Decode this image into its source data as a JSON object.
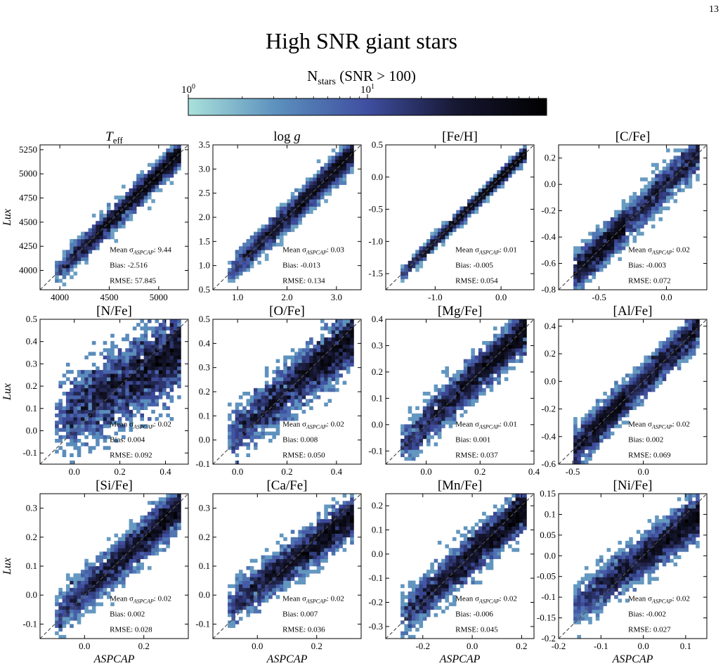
{
  "page_number": "13",
  "figure_title": "High SNR giant stars",
  "colorbar": {
    "label": "N_stars (SNR > 100)",
    "label_main": "N",
    "label_sub": "stars",
    "label_rest": " (SNR > 100)",
    "scale": "log",
    "ticks": [
      "10^0",
      "10^1"
    ],
    "colors": [
      "#a9e1db",
      "#5b8fbd",
      "#3f4ea0",
      "#161731",
      "#000000"
    ]
  },
  "chart_data": [
    {
      "type": "heatmap",
      "title": "T_eff",
      "xlabel": "",
      "ylabel": "Lux",
      "xlim": [
        3800,
        5300
      ],
      "ylim": [
        3800,
        5300
      ],
      "xticks": [
        4000,
        4500,
        5000
      ],
      "yticks": [
        4000,
        4250,
        4500,
        4750,
        5000,
        5250
      ],
      "diagonal": "y = x (dashed)",
      "spread": 0.04,
      "slope": 1.0,
      "tail": 0.0,
      "stats": {
        "mean_label": "Mean σ",
        "mean_sub": "ASPCAP",
        "mean_value": ": 9.44",
        "bias": "Bias: -2.516",
        "rmse": "RMSE: 57.845"
      }
    },
    {
      "type": "heatmap",
      "title": "log g",
      "xlabel": "",
      "ylabel": "",
      "xlim": [
        0.5,
        3.5
      ],
      "ylim": [
        0.5,
        3.5
      ],
      "xticks": [
        1,
        2,
        3
      ],
      "yticks": [
        0.5,
        1.0,
        1.5,
        2.0,
        2.5,
        3.0,
        3.5
      ],
      "diagonal": "y = x (dashed)",
      "spread": 0.045,
      "slope": 1.0,
      "tail": 0.0,
      "stats": {
        "mean_label": "Mean σ",
        "mean_sub": "ASPCAP",
        "mean_value": ": 0.03",
        "bias": "Bias: -0.013",
        "rmse": "RMSE: 0.134"
      }
    },
    {
      "type": "heatmap",
      "title": "[Fe/H]",
      "xlabel": "",
      "ylabel": "",
      "xlim": [
        -1.75,
        0.5
      ],
      "ylim": [
        -1.75,
        0.5
      ],
      "xticks": [
        -1,
        0
      ],
      "yticks": [
        -1.5,
        -1.0,
        -0.5,
        0.0,
        0.5
      ],
      "diagonal": "y = x (dashed)",
      "spread": 0.02,
      "slope": 1.0,
      "tail": 0.0,
      "stats": {
        "mean_label": "Mean σ",
        "mean_sub": "ASPCAP",
        "mean_value": ": 0.01",
        "bias": "Bias: -0.005",
        "rmse": "RMSE: 0.054"
      }
    },
    {
      "type": "heatmap",
      "title": "[C/Fe]",
      "xlabel": "",
      "ylabel": "",
      "xlim": [
        -0.8,
        0.3
      ],
      "ylim": [
        -0.8,
        0.3
      ],
      "xticks": [
        -0.5,
        0.0
      ],
      "yticks": [
        -0.8,
        -0.6,
        -0.4,
        -0.2,
        0.0,
        0.2
      ],
      "diagonal": "y = x (dashed)",
      "spread": 0.06,
      "slope": 1.0,
      "tail": 0.35,
      "stats": {
        "mean_label": "Mean σ",
        "mean_sub": "ASPCAP",
        "mean_value": ": 0.02",
        "bias": "Bias: -0.003",
        "rmse": "RMSE: 0.072"
      }
    },
    {
      "type": "heatmap",
      "title": "[N/Fe]",
      "xlabel": "",
      "ylabel": "Lux",
      "xlim": [
        -0.15,
        0.5
      ],
      "ylim": [
        -0.15,
        0.5
      ],
      "xticks": [
        0.0,
        0.2,
        0.4
      ],
      "yticks": [
        -0.1,
        0.0,
        0.1,
        0.2,
        0.3,
        0.4,
        0.5
      ],
      "diagonal": "y = x (dashed)",
      "spread": 0.13,
      "slope": 0.6,
      "tail": 0.0,
      "stats": {
        "mean_label": "Mean σ",
        "mean_sub": "ASPCAP",
        "mean_value": ": 0.02",
        "bias": "Bias: 0.004",
        "rmse": "RMSE: 0.092"
      }
    },
    {
      "type": "heatmap",
      "title": "[O/Fe]",
      "xlabel": "",
      "ylabel": "",
      "xlim": [
        -0.1,
        0.5
      ],
      "ylim": [
        -0.1,
        0.5
      ],
      "xticks": [
        0.0,
        0.2,
        0.4
      ],
      "yticks": [
        -0.1,
        0.0,
        0.1,
        0.2,
        0.3,
        0.4,
        0.5
      ],
      "diagonal": "y = x (dashed)",
      "spread": 0.09,
      "slope": 0.85,
      "tail": 0.0,
      "stats": {
        "mean_label": "Mean σ",
        "mean_sub": "ASPCAP",
        "mean_value": ": 0.02",
        "bias": "Bias: 0.008",
        "rmse": "RMSE: 0.050"
      }
    },
    {
      "type": "heatmap",
      "title": "[Mg/Fe]",
      "xlabel": "",
      "ylabel": "",
      "xlim": [
        -0.15,
        0.4
      ],
      "ylim": [
        -0.15,
        0.4
      ],
      "xticks": [
        0.0,
        0.2,
        0.4
      ],
      "yticks": [
        -0.1,
        0.0,
        0.1,
        0.2,
        0.3,
        0.4
      ],
      "diagonal": "y = x (dashed)",
      "spread": 0.07,
      "slope": 0.95,
      "tail": 0.0,
      "stats": {
        "mean_label": "Mean σ",
        "mean_sub": "ASPCAP",
        "mean_value": ": 0.01",
        "bias": "Bias: 0.001",
        "rmse": "RMSE: 0.037"
      }
    },
    {
      "type": "heatmap",
      "title": "[Al/Fe]",
      "xlabel": "",
      "ylabel": "",
      "xlim": [
        -0.6,
        0.45
      ],
      "ylim": [
        -0.6,
        0.45
      ],
      "xticks": [
        -0.5,
        0.0
      ],
      "yticks": [
        -0.6,
        -0.4,
        -0.2,
        0.0,
        0.2,
        0.4
      ],
      "diagonal": "y = x (dashed)",
      "spread": 0.06,
      "slope": 1.0,
      "tail": 0.3,
      "stats": {
        "mean_label": "Mean σ",
        "mean_sub": "ASPCAP",
        "mean_value": ": 0.02",
        "bias": "Bias: 0.002",
        "rmse": "RMSE: 0.069"
      }
    },
    {
      "type": "heatmap",
      "title": "[Si/Fe]",
      "xlabel": "ASPCAP",
      "ylabel": "Lux",
      "xlim": [
        -0.15,
        0.35
      ],
      "ylim": [
        -0.15,
        0.35
      ],
      "xticks": [
        0.0,
        0.2
      ],
      "yticks": [
        -0.1,
        0.0,
        0.1,
        0.2,
        0.3
      ],
      "diagonal": "y = x (dashed)",
      "spread": 0.07,
      "slope": 0.9,
      "tail": 0.0,
      "stats": {
        "mean_label": "Mean σ",
        "mean_sub": "ASPCAP",
        "mean_value": ": 0.02",
        "bias": "Bias: 0.002",
        "rmse": "RMSE: 0.028"
      }
    },
    {
      "type": "heatmap",
      "title": "[Ca/Fe]",
      "xlabel": "ASPCAP",
      "ylabel": "",
      "xlim": [
        -0.15,
        0.35
      ],
      "ylim": [
        -0.15,
        0.35
      ],
      "xticks": [
        0.0,
        0.2
      ],
      "yticks": [
        -0.1,
        0.0,
        0.1,
        0.2,
        0.3
      ],
      "diagonal": "y = x (dashed)",
      "spread": 0.07,
      "slope": 0.75,
      "tail": 0.0,
      "stats": {
        "mean_label": "Mean σ",
        "mean_sub": "ASPCAP",
        "mean_value": ": 0.02",
        "bias": "Bias: 0.007",
        "rmse": "RMSE: 0.036"
      }
    },
    {
      "type": "heatmap",
      "title": "[Mn/Fe]",
      "xlabel": "ASPCAP",
      "ylabel": "",
      "xlim": [
        -0.35,
        0.25
      ],
      "ylim": [
        -0.35,
        0.25
      ],
      "xticks": [
        -0.2,
        0.0,
        0.2
      ],
      "yticks": [
        -0.3,
        -0.2,
        -0.1,
        0.0,
        0.1,
        0.2
      ],
      "diagonal": "y = x (dashed)",
      "spread": 0.07,
      "slope": 0.9,
      "tail": 0.0,
      "stats": {
        "mean_label": "Mean σ",
        "mean_sub": "ASPCAP",
        "mean_value": ": 0.02",
        "bias": "Bias: -0.006",
        "rmse": "RMSE: 0.045"
      }
    },
    {
      "type": "heatmap",
      "title": "[Ni/Fe]",
      "xlabel": "ASPCAP",
      "ylabel": "",
      "xlim": [
        -0.2,
        0.15
      ],
      "ylim": [
        -0.2,
        0.15
      ],
      "xticks": [
        -0.2,
        -0.1,
        0.0,
        0.1
      ],
      "yticks": [
        -0.2,
        -0.15,
        -0.1,
        -0.05,
        0.0,
        0.05,
        0.1,
        0.15
      ],
      "diagonal": "y = x (dashed)",
      "spread": 0.07,
      "slope": 0.75,
      "tail": 0.0,
      "stats": {
        "mean_label": "Mean σ",
        "mean_sub": "ASPCAP",
        "mean_value": ": 0.02",
        "bias": "Bias: -0.002",
        "rmse": "RMSE: 0.027"
      }
    }
  ]
}
